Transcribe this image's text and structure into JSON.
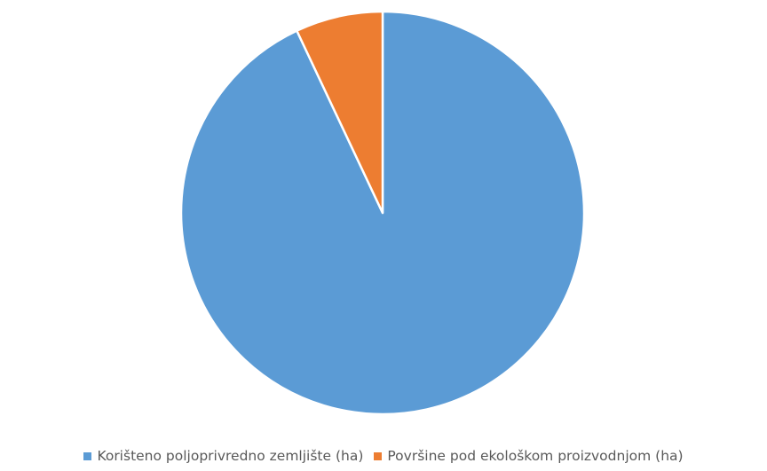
{
  "chart_data": {
    "type": "pie",
    "categories": [
      "Korišteno poljoprivredno zemljište (ha)",
      "Površine pod ekološkom proizvodnjom (ha)"
    ],
    "values": [
      93,
      7
    ],
    "colors": [
      "#5b9bd5",
      "#ed7d31"
    ],
    "title": "",
    "legend_position": "bottom"
  }
}
